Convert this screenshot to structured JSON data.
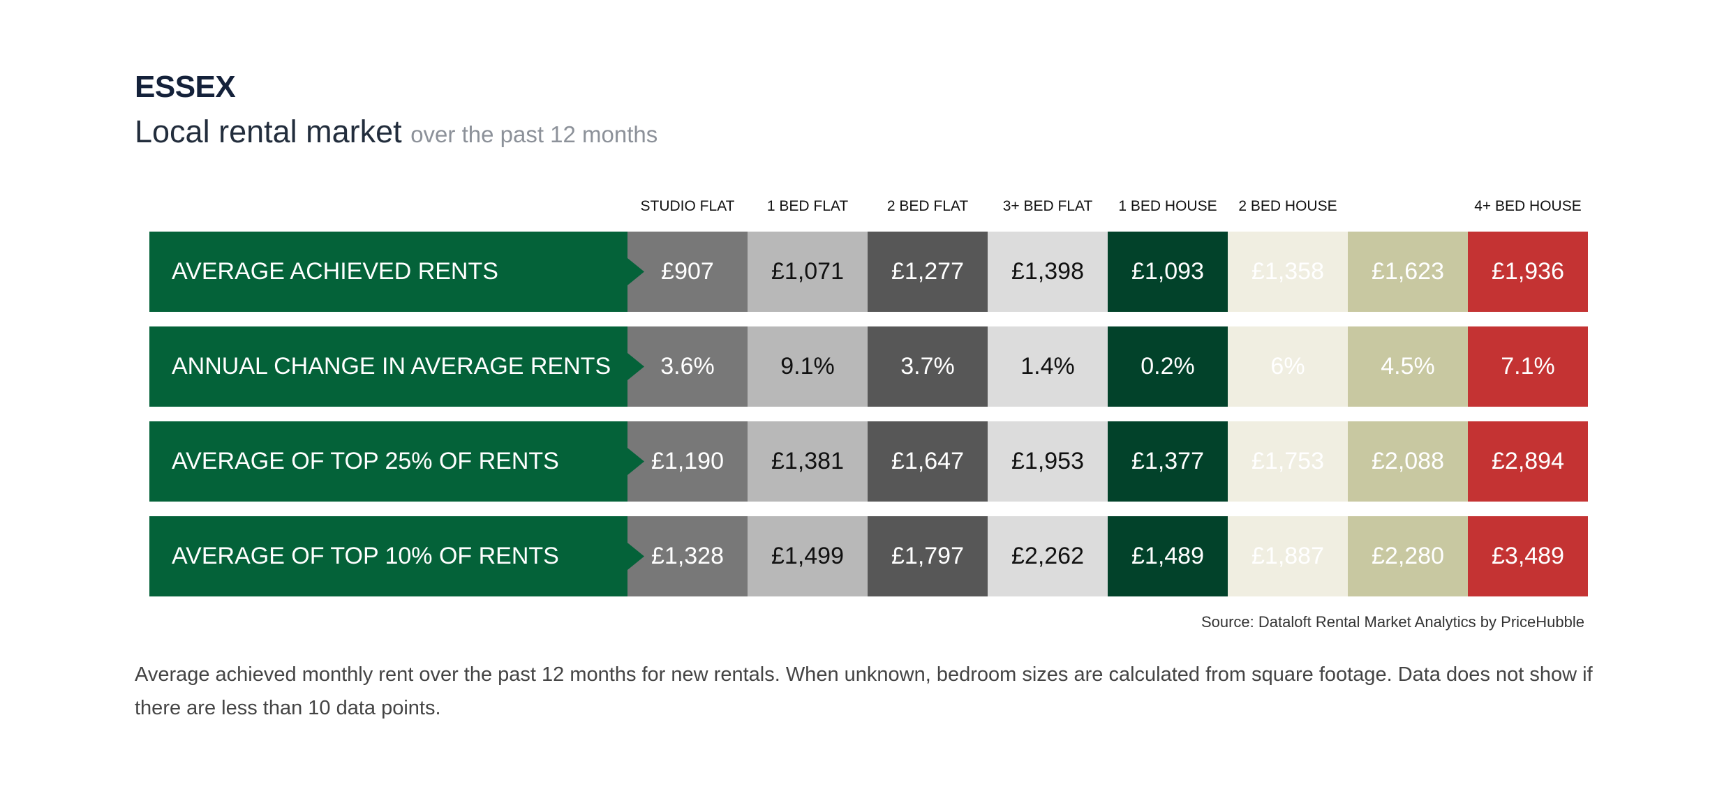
{
  "header": {
    "region": "ESSEX",
    "title": "Local rental market",
    "title_suffix": "over the past 12 months"
  },
  "chart_data": {
    "type": "table",
    "columns": [
      "STUDIO FLAT",
      "1 BED FLAT",
      "2 BED FLAT",
      "3+ BED FLAT",
      "1 BED HOUSE",
      "2 BED HOUSE",
      "",
      "4+ BED HOUSE"
    ],
    "rows": [
      {
        "label": "AVERAGE ACHIEVED RENTS",
        "values": [
          "£907",
          "£1,071",
          "£1,277",
          "£1,398",
          "£1,093",
          "£1,358",
          "£1,623",
          "£1,936"
        ]
      },
      {
        "label": "ANNUAL CHANGE IN AVERAGE RENTS",
        "values": [
          "3.6%",
          "9.1%",
          "3.7%",
          "1.4%",
          "0.2%",
          "6%",
          "4.5%",
          "7.1%"
        ]
      },
      {
        "label": "AVERAGE OF TOP 25% OF RENTS",
        "values": [
          "£1,190",
          "£1,381",
          "£1,647",
          "£1,953",
          "£1,377",
          "£1,753",
          "£2,088",
          "£2,894"
        ]
      },
      {
        "label": "AVERAGE OF TOP 10% OF RENTS",
        "values": [
          "£1,328",
          "£1,499",
          "£1,797",
          "£2,262",
          "£1,489",
          "£1,887",
          "£2,280",
          "£3,489"
        ]
      }
    ],
    "column_colors": [
      "#787878",
      "#b8b8b8",
      "#575757",
      "#dcdcdc",
      "#02422a",
      "#f0eee1",
      "#c8c8a1",
      "#c43333"
    ],
    "column_text_colors": [
      "#ffffff",
      "#111111",
      "#ffffff",
      "#111111",
      "#ffffff",
      "#ffffff",
      "#ffffff",
      "#ffffff"
    ],
    "label_color": "#046239"
  },
  "footer": {
    "source": "Source: Dataloft Rental Market Analytics by PriceHubble",
    "note": "Average achieved monthly rent over the past 12 months for new rentals. When unknown, bedroom sizes are calculated from square footage. Data does not show if there are less than 10 data points."
  }
}
